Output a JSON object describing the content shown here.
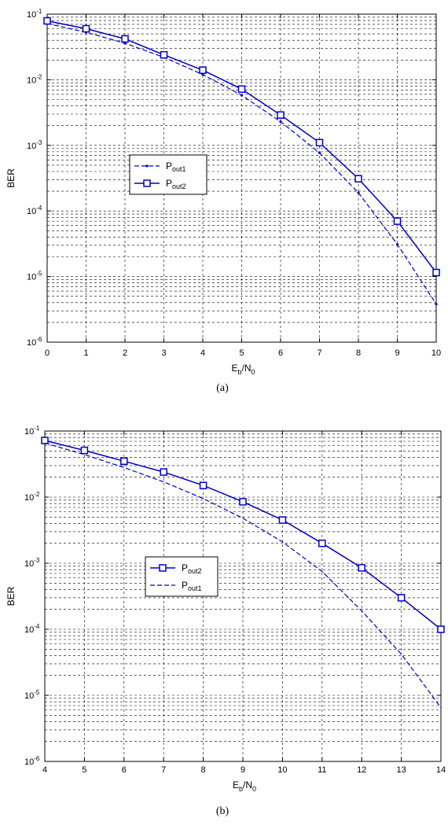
{
  "chart_data": [
    {
      "type": "line",
      "caption": "(a)",
      "xlabel": "E",
      "xlabel_sub": "b",
      "xlabel_mid": "/N",
      "xlabel_sub2": "0",
      "ylabel": "BER",
      "xlim": [
        0,
        10
      ],
      "ylim": [
        1e-06,
        0.1
      ],
      "yscale": "log",
      "grid": true,
      "xticks": [
        "0",
        "1",
        "2",
        "3",
        "4",
        "5",
        "6",
        "7",
        "8",
        "9",
        "10"
      ],
      "yticks": [
        {
          "base": "10",
          "exp": "-1"
        },
        {
          "base": "10",
          "exp": "-2"
        },
        {
          "base": "10",
          "exp": "-3"
        },
        {
          "base": "10",
          "exp": "-4"
        },
        {
          "base": "10",
          "exp": "-5"
        },
        {
          "base": "10",
          "exp": "-6"
        }
      ],
      "legend_position": "center-left",
      "series": [
        {
          "name": "P",
          "name_sub": "out1",
          "style": "dashed-dot",
          "color": "#0000cc",
          "x": [
            0,
            1,
            2,
            3,
            4,
            5,
            6,
            7,
            8,
            9,
            10
          ],
          "y": [
            0.072,
            0.053,
            0.036,
            0.022,
            0.012,
            0.0058,
            0.0023,
            0.00077,
            0.00019,
            3.1e-05,
            3.8e-06
          ]
        },
        {
          "name": "P",
          "name_sub": "out2",
          "style": "solid-square",
          "color": "#0000cc",
          "x": [
            0,
            1,
            2,
            3,
            4,
            5,
            6,
            7,
            8,
            9,
            10
          ],
          "y": [
            0.079,
            0.06,
            0.042,
            0.024,
            0.014,
            0.0072,
            0.0029,
            0.0011,
            0.00031,
            7e-05,
            1.15e-05
          ]
        }
      ]
    },
    {
      "type": "line",
      "caption": "(b)",
      "xlabel": "E",
      "xlabel_sub": "b",
      "xlabel_mid": "/N",
      "xlabel_sub2": "0",
      "ylabel": "BER",
      "xlim": [
        4,
        14
      ],
      "ylim": [
        1e-06,
        0.1
      ],
      "yscale": "log",
      "grid": true,
      "xticks": [
        "4",
        "5",
        "6",
        "7",
        "8",
        "9",
        "10",
        "11",
        "12",
        "13",
        "14"
      ],
      "yticks": [
        {
          "base": "10",
          "exp": "-1"
        },
        {
          "base": "10",
          "exp": "-2"
        },
        {
          "base": "10",
          "exp": "-3"
        },
        {
          "base": "10",
          "exp": "-4"
        },
        {
          "base": "10",
          "exp": "-5"
        },
        {
          "base": "10",
          "exp": "-6"
        }
      ],
      "legend_position": "center-left",
      "series": [
        {
          "name": "P",
          "name_sub": "out2",
          "style": "solid-square",
          "color": "#0000cc",
          "x": [
            4,
            5,
            6,
            7,
            8,
            9,
            10,
            11,
            12,
            13,
            14
          ],
          "y": [
            0.072,
            0.051,
            0.035,
            0.024,
            0.015,
            0.0085,
            0.0045,
            0.002,
            0.00085,
            0.0003,
            0.0001
          ]
        },
        {
          "name": "P",
          "name_sub": "out1",
          "style": "dashed",
          "color": "#0000cc",
          "x": [
            4,
            5,
            6,
            7,
            8,
            9,
            10,
            11,
            12,
            13,
            14
          ],
          "y": [
            0.066,
            0.044,
            0.028,
            0.017,
            0.0095,
            0.0048,
            0.0021,
            0.00075,
            0.00019,
            4.2e-05,
            6.5e-06
          ]
        }
      ]
    }
  ]
}
